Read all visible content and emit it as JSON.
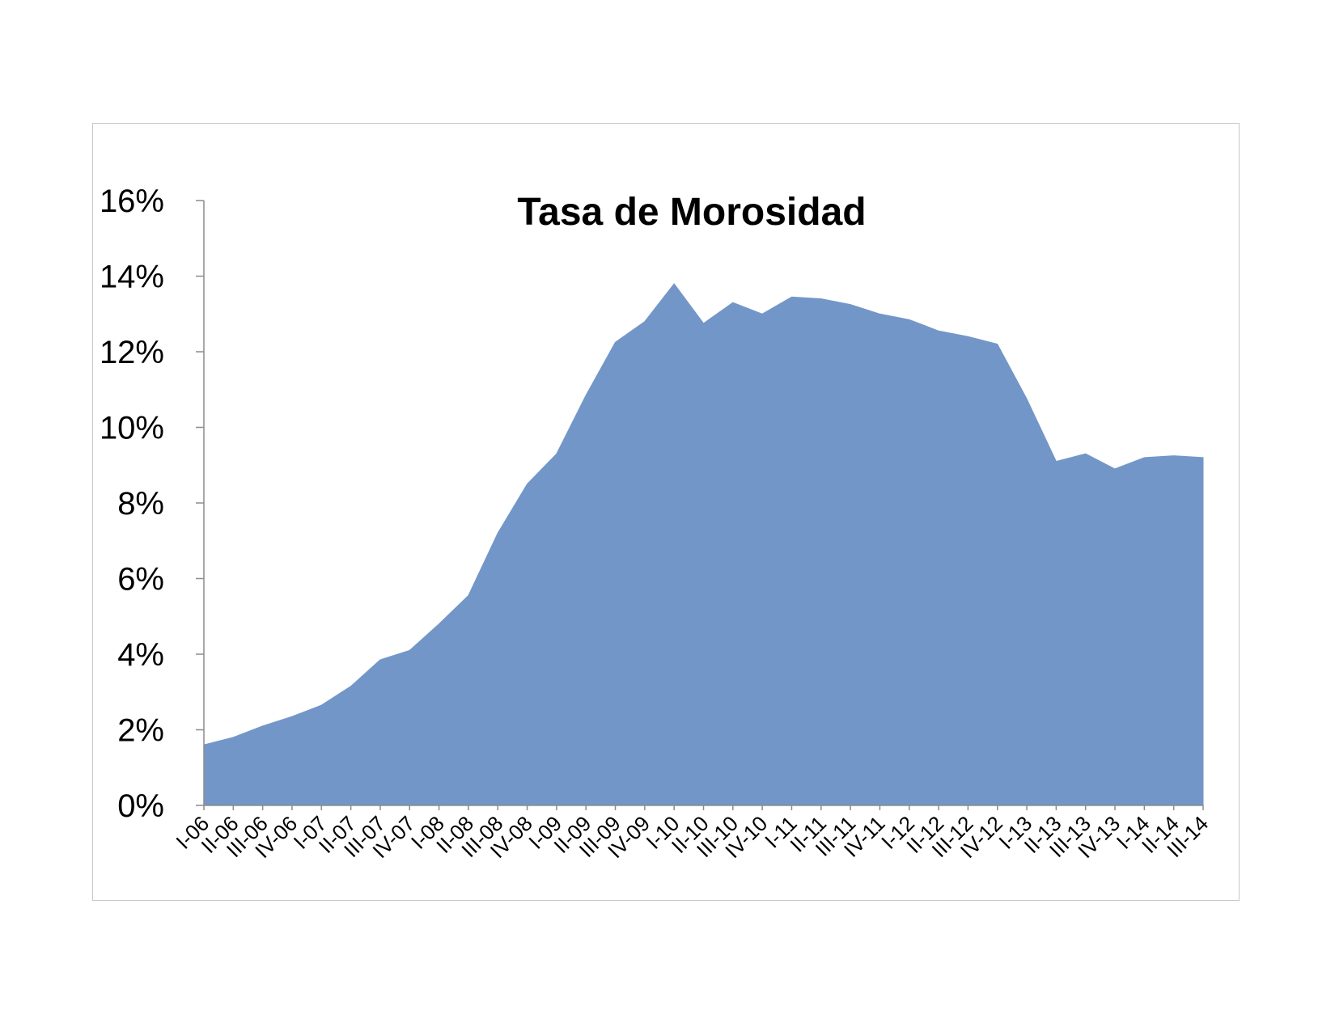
{
  "chart_data": {
    "type": "area",
    "title": "Tasa de Morosidad",
    "xlabel": "",
    "ylabel": "",
    "ylim": [
      0,
      16
    ],
    "y_ticks": [
      "0%",
      "2%",
      "4%",
      "6%",
      "8%",
      "10%",
      "12%",
      "14%",
      "16%"
    ],
    "categories": [
      "I-06",
      "II-06",
      "III-06",
      "IV-06",
      "I-07",
      "II-07",
      "III-07",
      "IV-07",
      "I-08",
      "II-08",
      "III-08",
      "IV-08",
      "I-09",
      "II-09",
      "III-09",
      "IV-09",
      "I-10",
      "II-10",
      "III-10",
      "IV-10",
      "I-11",
      "II-11",
      "III-11",
      "IV-11",
      "I-12",
      "II-12",
      "III-12",
      "IV-12",
      "I-13",
      "II-13",
      "III-13",
      "IV-13",
      "I-14",
      "II-14",
      "III-14"
    ],
    "values": [
      1.6,
      1.8,
      2.1,
      2.35,
      2.65,
      3.15,
      3.85,
      4.1,
      4.8,
      5.55,
      7.2,
      8.5,
      9.3,
      10.85,
      12.25,
      12.8,
      13.8,
      12.75,
      13.3,
      13.0,
      13.45,
      13.4,
      13.25,
      13.0,
      12.85,
      12.55,
      12.4,
      12.2,
      10.75,
      9.1,
      9.3,
      8.9,
      9.2,
      9.25,
      9.2
    ],
    "series_color": "#7396c8",
    "grid": false,
    "legend": "none"
  }
}
